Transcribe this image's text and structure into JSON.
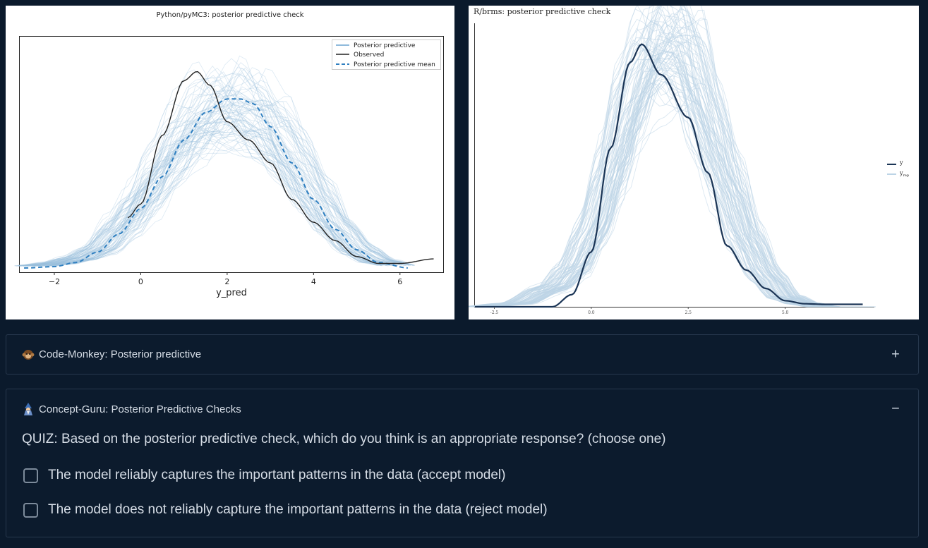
{
  "chart_data": [
    {
      "type": "line",
      "title": "Python/pyMC3: posterior predictive check",
      "xlabel": "y_pred",
      "ylabel": "",
      "xlim": [
        -2.8,
        7.0
      ],
      "xticks": [
        -2,
        0,
        2,
        4,
        6
      ],
      "legend_position": "top-right",
      "grid": false,
      "series": [
        {
          "name": "Posterior predictive",
          "color": "#9bbfdc",
          "style": "thin lines (many draws)",
          "x": [
            -2.5,
            -2.0,
            -1.5,
            -1.0,
            -0.5,
            0.0,
            0.5,
            1.0,
            1.5,
            2.0,
            2.5,
            3.0,
            3.5,
            4.0,
            4.5,
            5.0,
            5.5,
            6.0
          ],
          "values": [
            0.005,
            0.01,
            0.02,
            0.04,
            0.09,
            0.15,
            0.22,
            0.29,
            0.34,
            0.36,
            0.35,
            0.31,
            0.24,
            0.16,
            0.09,
            0.04,
            0.015,
            0.005
          ]
        },
        {
          "name": "Observed",
          "color": "#222222",
          "style": "solid",
          "x": [
            -0.3,
            0.0,
            0.5,
            1.0,
            1.3,
            1.6,
            2.0,
            2.5,
            3.0,
            3.5,
            4.0,
            4.5,
            5.0,
            5.5,
            6.0,
            6.8
          ],
          "values": [
            0.11,
            0.14,
            0.29,
            0.41,
            0.43,
            0.4,
            0.32,
            0.28,
            0.23,
            0.15,
            0.1,
            0.06,
            0.025,
            0.01,
            0.01,
            0.02
          ]
        },
        {
          "name": "Posterior predictive mean",
          "color": "#2f7fc0",
          "style": "dashed",
          "x": [
            -2.7,
            -2.0,
            -1.5,
            -1.0,
            -0.5,
            0.0,
            0.5,
            1.0,
            1.5,
            2.0,
            2.3,
            2.6,
            3.0,
            3.5,
            4.0,
            4.5,
            5.0,
            5.5,
            6.2
          ],
          "values": [
            0.0,
            0.003,
            0.012,
            0.035,
            0.075,
            0.13,
            0.2,
            0.28,
            0.34,
            0.37,
            0.37,
            0.36,
            0.31,
            0.23,
            0.15,
            0.085,
            0.04,
            0.012,
            0.0
          ]
        }
      ]
    },
    {
      "type": "line",
      "title": "R/brms: posterior predictive check",
      "xlabel": "",
      "ylabel": "",
      "xlim": [
        -3.0,
        7.3
      ],
      "xticks": [
        "-2.5",
        "0.0",
        "2.5",
        "5.0"
      ],
      "legend_position": "right",
      "grid": false,
      "series": [
        {
          "name": "y",
          "color": "#1b3556",
          "style": "thick",
          "x": [
            -3.0,
            -1.0,
            -0.5,
            0.0,
            0.5,
            1.0,
            1.3,
            1.8,
            2.5,
            3.0,
            3.5,
            4.0,
            4.5,
            5.0,
            5.5,
            6.0,
            7.0
          ],
          "values": [
            0.0,
            0.0,
            0.02,
            0.09,
            0.26,
            0.4,
            0.43,
            0.38,
            0.31,
            0.22,
            0.1,
            0.06,
            0.03,
            0.01,
            0.005,
            0.004,
            0.004
          ]
        },
        {
          "name": "y_rep",
          "color": "#bcd4e6",
          "style": "thin lines (many draws)",
          "x": [
            -3.0,
            -2.0,
            -1.0,
            -0.5,
            0.0,
            0.5,
            1.0,
            1.5,
            2.0,
            2.5,
            3.0,
            3.5,
            4.0,
            4.5,
            5.0,
            5.5,
            6.0,
            7.0
          ],
          "values": [
            0.0,
            0.005,
            0.03,
            0.06,
            0.12,
            0.22,
            0.33,
            0.41,
            0.43,
            0.4,
            0.3,
            0.2,
            0.11,
            0.05,
            0.015,
            0.005,
            0.0,
            0.0
          ]
        }
      ]
    }
  ],
  "legend_left": {
    "items": [
      "Posterior predictive",
      "Observed",
      "Posterior predictive mean"
    ]
  },
  "legend_right": {
    "y_label": "y",
    "yrep_label": "y",
    "yrep_sub": "rep"
  },
  "accordions": [
    {
      "emoji": "monkey",
      "label": "Code-Monkey: Posterior predictive",
      "toggle": "+"
    },
    {
      "emoji": "guru",
      "label": "Concept-Guru: Posterior Predictive Checks",
      "toggle": "−",
      "quiz": "QUIZ: Based on the posterior predictive check, which do you think is an appropriate response? (choose one)",
      "options": [
        "The model reliably captures the important patterns in the data (accept model)",
        "The model does not reliably capture the important patterns in the data (reject model)"
      ]
    }
  ]
}
